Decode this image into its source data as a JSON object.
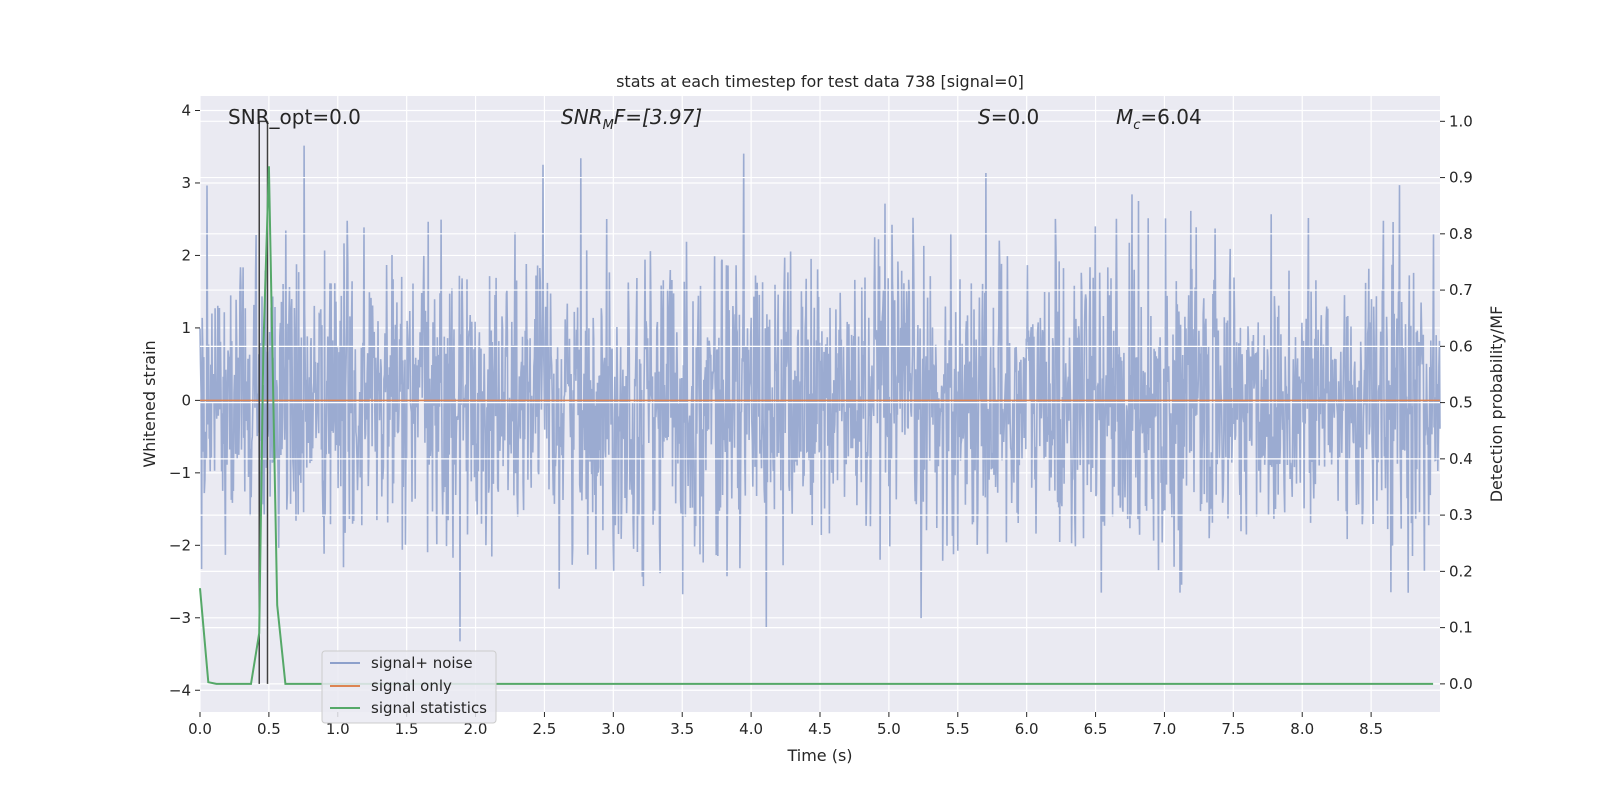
{
  "chart_data": {
    "type": "line",
    "title": "stats at each timestep for test data 738 [signal=0]",
    "xlabel": "Time (s)",
    "ylabel_left": "Whitened strain",
    "ylabel_right": "Detection probability/MF",
    "xlim": [
      0,
      9.0
    ],
    "ylim_left": [
      -4.3,
      4.2
    ],
    "ylim_right": [
      -0.05,
      1.045
    ],
    "x_ticks": [
      "0.0",
      "0.5",
      "1.0",
      "1.5",
      "2.0",
      "2.5",
      "3.0",
      "3.5",
      "4.0",
      "4.5",
      "5.0",
      "5.5",
      "6.0",
      "6.5",
      "7.0",
      "7.5",
      "8.0",
      "8.5"
    ],
    "y_ticks_left": [
      "−4",
      "−3",
      "−2",
      "−1",
      "0",
      "1",
      "2",
      "3",
      "4"
    ],
    "y_ticks_right": [
      "0.0",
      "0.1",
      "0.2",
      "0.3",
      "0.4",
      "0.5",
      "0.6",
      "0.7",
      "0.8",
      "0.9",
      "1.0"
    ],
    "grid": true,
    "legend_position": "lower-left",
    "annotations": {
      "snr_opt": "SNR_opt=0.0",
      "snr_mf_label": "SNR",
      "snr_mf_sub": "M",
      "snr_mf_value": "F=[3.97]",
      "s_label": "S",
      "s_value": "=0.0",
      "mc_label": "M",
      "mc_sub": "c",
      "mc_value": "=6.04"
    },
    "series": [
      {
        "name": "signal+ noise",
        "color": "#8da0cb",
        "description_values": "dense whitened noise, mostly between -1.7 and 1.5, peaks up to about 3.8 and down to about -4"
      },
      {
        "name": "signal only",
        "color": "#dd8452",
        "values_constant": 0.0
      },
      {
        "name": "signal statistics",
        "color": "#55a868",
        "x": [
          0.0,
          0.06,
          0.12,
          0.18,
          0.25,
          0.31,
          0.37,
          0.43,
          0.46,
          0.5,
          0.56,
          0.62,
          0.68,
          8.95
        ],
        "values": [
          0.17,
          0.003,
          0.0,
          0.0,
          0.0,
          0.0,
          0.0,
          0.09,
          0.6,
          0.92,
          0.14,
          0.0,
          0.0,
          0.0
        ]
      }
    ],
    "vertical_markers": [
      {
        "x": 0.43,
        "color": "#404040"
      },
      {
        "x": 0.49,
        "color": "#404040"
      }
    ]
  }
}
